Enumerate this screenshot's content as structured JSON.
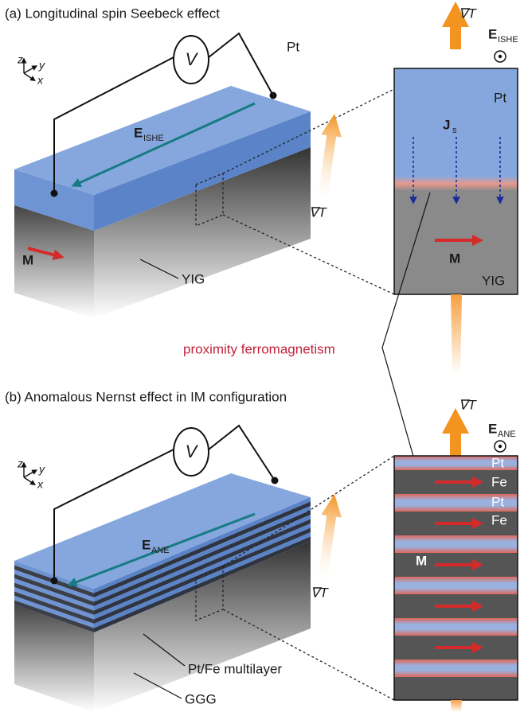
{
  "panel_a": {
    "title": "(a) Longitudinal spin Seebeck effect",
    "axes": {
      "z": "z",
      "y": "y",
      "x": "x"
    },
    "voltmeter": "V",
    "layer_top": "Pt",
    "field": {
      "symbol": "E",
      "subscript": "ISHE"
    },
    "magnetization": "M",
    "substrate": "YIG",
    "gradient": "∇T",
    "inset": {
      "gradient": "∇T",
      "field": {
        "symbol": "E",
        "subscript": "ISHE"
      },
      "top": "Pt",
      "current": {
        "symbol": "J",
        "subscript": "s"
      },
      "magnetization": "M",
      "bottom": "YIG"
    }
  },
  "annotation": "proximity ferromagnetism",
  "panel_b": {
    "title": "(b) Anomalous Nernst effect in IM configuration",
    "axes": {
      "z": "z",
      "y": "y",
      "x": "x"
    },
    "voltmeter": "V",
    "field": {
      "symbol": "E",
      "subscript": "ANE"
    },
    "multilayer": "Pt/Fe multilayer",
    "substrate": "GGG",
    "gradient": "∇T",
    "inset": {
      "gradient": "∇T",
      "field": {
        "symbol": "E",
        "subscript": "ANE"
      },
      "layers": [
        "Pt",
        "Fe",
        "Pt",
        "Fe"
      ],
      "magnetization": "M"
    }
  }
}
